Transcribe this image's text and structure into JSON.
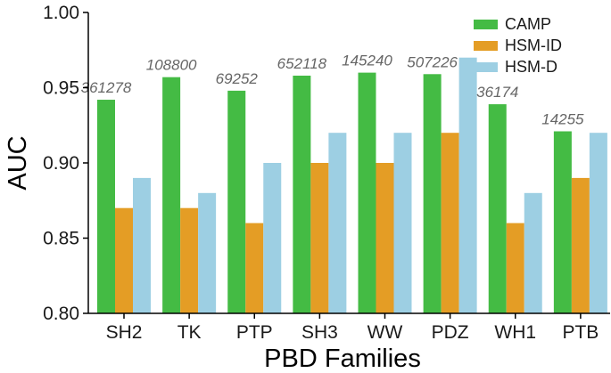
{
  "chart_data": {
    "type": "bar",
    "xlabel": "PBD Families",
    "ylabel": "AUC",
    "ylim": [
      0.8,
      1.0
    ],
    "yticks": [
      "0.80",
      "0.85",
      "0.90",
      "0.95",
      "1.00"
    ],
    "categories": [
      "SH2",
      "TK",
      "PTP",
      "SH3",
      "WW",
      "PDZ",
      "WH1",
      "PTB"
    ],
    "series": [
      {
        "name": "CAMP",
        "color": "#44bb44",
        "values": [
          0.942,
          0.957,
          0.948,
          0.958,
          0.96,
          0.959,
          0.939,
          0.921
        ]
      },
      {
        "name": "HSM-ID",
        "color": "#e49d25",
        "values": [
          0.87,
          0.87,
          0.86,
          0.9,
          0.9,
          0.92,
          0.86,
          0.89
        ]
      },
      {
        "name": "HSM-D",
        "color": "#9dcfe3",
        "values": [
          0.89,
          0.88,
          0.9,
          0.92,
          0.92,
          0.97,
          0.88,
          0.92
        ]
      }
    ],
    "annotations": [
      "361278",
      "108800",
      "69252",
      "652118",
      "145240",
      "507226",
      "36174",
      "14255"
    ],
    "legend_position": "top-right",
    "grid": false
  }
}
